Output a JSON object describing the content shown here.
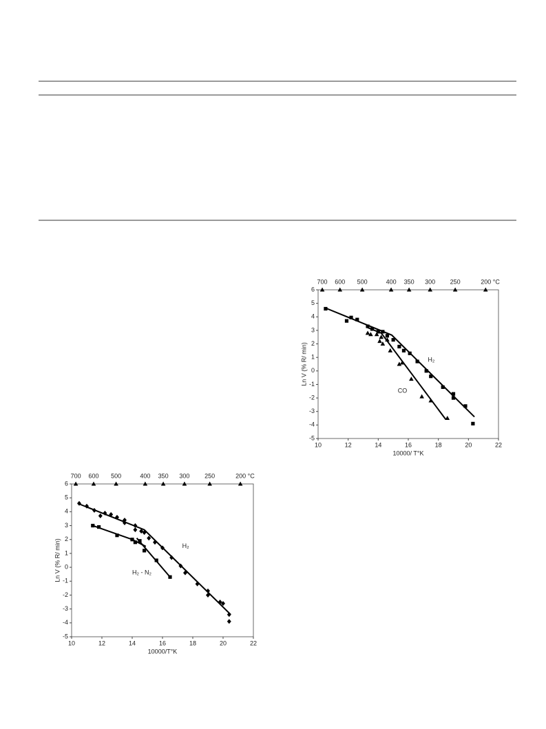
{
  "chart_data": [
    {
      "type": "scatter",
      "xlabel": "10000/ T°K",
      "ylabel": "Ln V (% R/ min)",
      "xlim": [
        10,
        22
      ],
      "ylim": [
        -5,
        6
      ],
      "xticks": [
        10,
        12,
        14,
        16,
        18,
        20,
        22
      ],
      "yticks": [
        -5,
        -4,
        -3,
        -2,
        -1,
        0,
        1,
        2,
        3,
        4,
        5,
        6
      ],
      "x2ticks": [
        700,
        600,
        500,
        400,
        350,
        300,
        250,
        {
          "value": 200,
          "label": "200 °C"
        }
      ],
      "grid": false,
      "series": [
        {
          "name": "H₂",
          "color": "#000000",
          "marker": "square",
          "x": [
            10.5,
            11.9,
            12.2,
            12.6,
            13.3,
            13.6,
            14.0,
            14.3,
            14.6,
            15.0,
            15.4,
            15.7,
            16.1,
            16.6,
            17.2,
            17.5,
            18.3,
            19.0,
            19.0,
            19.8,
            20.3
          ],
          "values": [
            4.6,
            3.7,
            3.95,
            3.8,
            3.3,
            3.1,
            2.9,
            2.9,
            2.6,
            2.3,
            1.8,
            1.5,
            1.3,
            0.7,
            0.0,
            -0.4,
            -1.2,
            -1.7,
            -2.0,
            -2.6,
            -3.9
          ],
          "fit": {
            "x": [
              10.5,
              14.9,
              20.4
            ],
            "values": [
              4.65,
              2.65,
              -3.4
            ]
          }
        },
        {
          "name": "CO",
          "color": "#000000",
          "marker": "triangle",
          "x": [
            13.3,
            13.5,
            13.9,
            14.2,
            14.1,
            14.3,
            14.6,
            14.8,
            15.4,
            15.6,
            16.2,
            16.9,
            17.5,
            18.6
          ],
          "values": [
            2.8,
            2.7,
            2.7,
            2.5,
            2.2,
            2.0,
            2.3,
            1.5,
            0.5,
            0.6,
            -0.6,
            -1.9,
            -2.2,
            -3.5
          ],
          "fit": {
            "x": [
              13.3,
              14.2,
              18.5
            ],
            "values": [
              3.2,
              2.8,
              -3.6
            ]
          }
        }
      ]
    },
    {
      "type": "scatter",
      "xlabel": "10000/T°K",
      "ylabel": "Ln V (% R/ min)",
      "xlim": [
        10,
        22
      ],
      "ylim": [
        -5,
        6
      ],
      "xticks": [
        10,
        12,
        14,
        16,
        18,
        20,
        22
      ],
      "yticks": [
        -5,
        -4,
        -3,
        -2,
        -1,
        0,
        1,
        2,
        3,
        4,
        5,
        6
      ],
      "x2ticks": [
        700,
        600,
        500,
        400,
        350,
        300,
        250,
        {
          "value": 200,
          "label": "200 °C"
        }
      ],
      "grid": false,
      "series": [
        {
          "name": "H₂",
          "color": "#000000",
          "marker": "diamond",
          "x": [
            10.5,
            11.0,
            11.5,
            11.9,
            12.2,
            12.6,
            13.0,
            13.5,
            13.5,
            14.2,
            14.2,
            14.6,
            14.8,
            15.1,
            15.5,
            16.0,
            16.6,
            17.2,
            17.5,
            18.3,
            19.0,
            19.0,
            19.8,
            20.0,
            20.4,
            20.4
          ],
          "values": [
            4.6,
            4.4,
            4.1,
            3.7,
            3.9,
            3.8,
            3.6,
            3.2,
            3.4,
            3.0,
            2.7,
            2.6,
            2.5,
            2.1,
            1.8,
            1.4,
            0.7,
            0.1,
            -0.4,
            -1.2,
            -1.7,
            -2.0,
            -2.5,
            -2.6,
            -3.4,
            -3.9
          ],
          "fit": {
            "x": [
              10.4,
              14.8,
              20.5
            ],
            "values": [
              4.6,
              2.7,
              -3.4
            ]
          }
        },
        {
          "name": "H₂ - N₂",
          "color": "#000000",
          "marker": "square",
          "x": [
            11.4,
            11.8,
            13.0,
            14.0,
            14.2,
            14.5,
            14.8,
            15.6,
            16.5
          ],
          "values": [
            3.0,
            2.9,
            2.3,
            2.0,
            1.8,
            1.9,
            1.2,
            0.5,
            -0.7
          ],
          "fit": {
            "x": [
              11.4,
              14.0,
              14.9
            ],
            "values": [
              3.0,
              2.0,
              1.5
            ]
          },
          "fit2": {
            "x": [
              14.3,
              16.5
            ],
            "values": [
              2.1,
              -0.7
            ]
          }
        }
      ]
    }
  ]
}
